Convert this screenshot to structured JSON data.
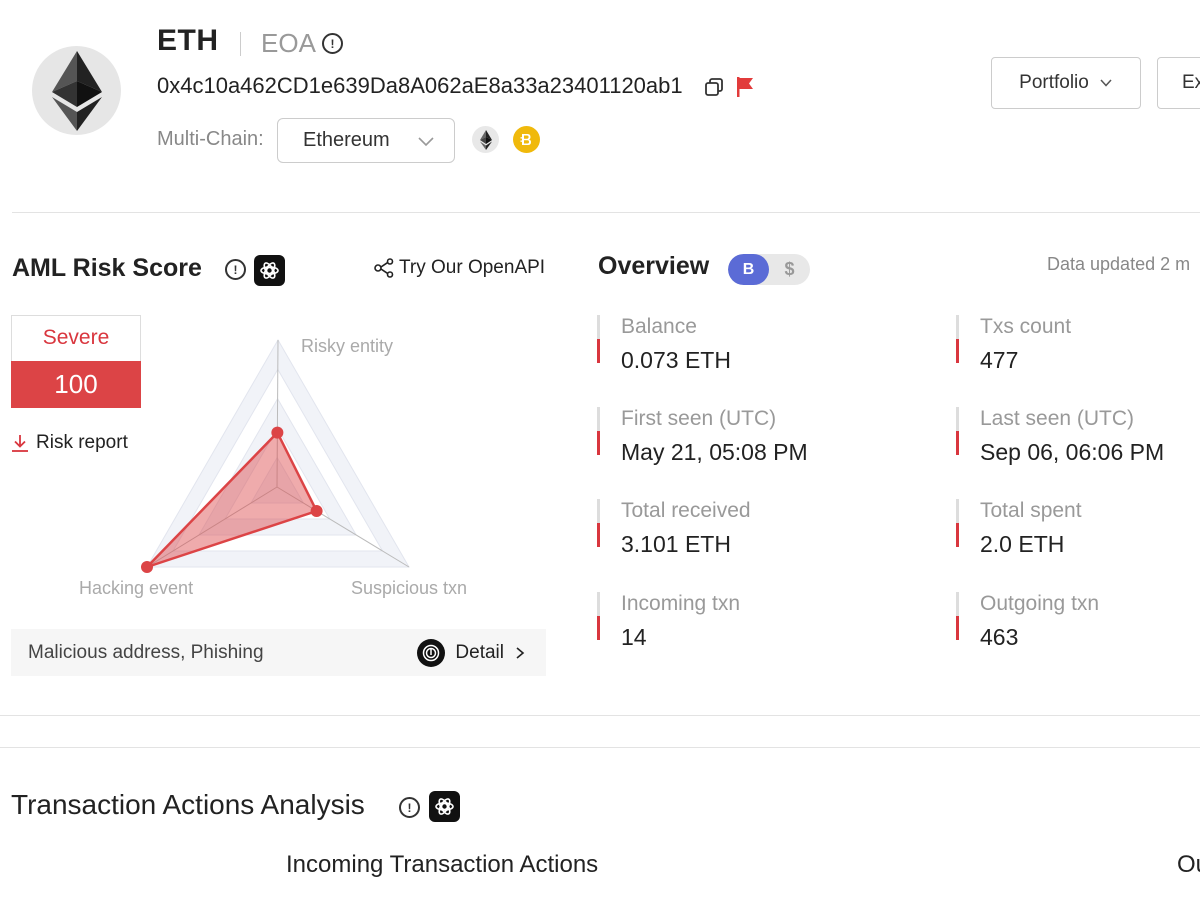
{
  "header": {
    "token": "ETH",
    "account_type": "EOA",
    "address": "0x4c10a462CD1e639Da8A062aE8a33a23401120ab1",
    "multichain_label": "Multi-Chain:",
    "chain_selected": "Ethereum",
    "chain_icons": [
      "ethereum-icon",
      "bnb-chain-icon"
    ],
    "portfolio_label": "Portfolio",
    "export_label": "Ex",
    "flag_color": "#e23b3b"
  },
  "aml": {
    "title": "AML Risk Score",
    "openapi_label": "Try Our OpenAPI",
    "level": "Severe",
    "score": "100",
    "risk_report_label": "Risk report",
    "radar": {
      "axes": [
        "Risky entity",
        "Hacking event",
        "Suspicious txn"
      ],
      "values": [
        0.37,
        1.0,
        0.3
      ],
      "color": "#dc4446"
    },
    "tags": "Malicious address, Phishing",
    "detail_label": "Detail"
  },
  "overview": {
    "title": "Overview",
    "currency_toggle": [
      "B",
      "$"
    ],
    "updated": "Data updated 2 m",
    "stats": [
      {
        "label": "Balance",
        "value": "0.073 ETH"
      },
      {
        "label": "Txs count",
        "value": "477"
      },
      {
        "label": "First seen (UTC)",
        "value": "May 21, 05:08 PM"
      },
      {
        "label": "Last seen (UTC)",
        "value": "Sep 06, 06:06 PM"
      },
      {
        "label": "Total received",
        "value": "3.101 ETH"
      },
      {
        "label": "Total spent",
        "value": "2.0 ETH"
      },
      {
        "label": "Incoming txn",
        "value": "14"
      },
      {
        "label": "Outgoing txn",
        "value": "463"
      }
    ]
  },
  "analysis": {
    "title": "Transaction Actions Analysis",
    "incoming_title": "Incoming Transaction Actions",
    "outgoing_title": "Ou"
  }
}
